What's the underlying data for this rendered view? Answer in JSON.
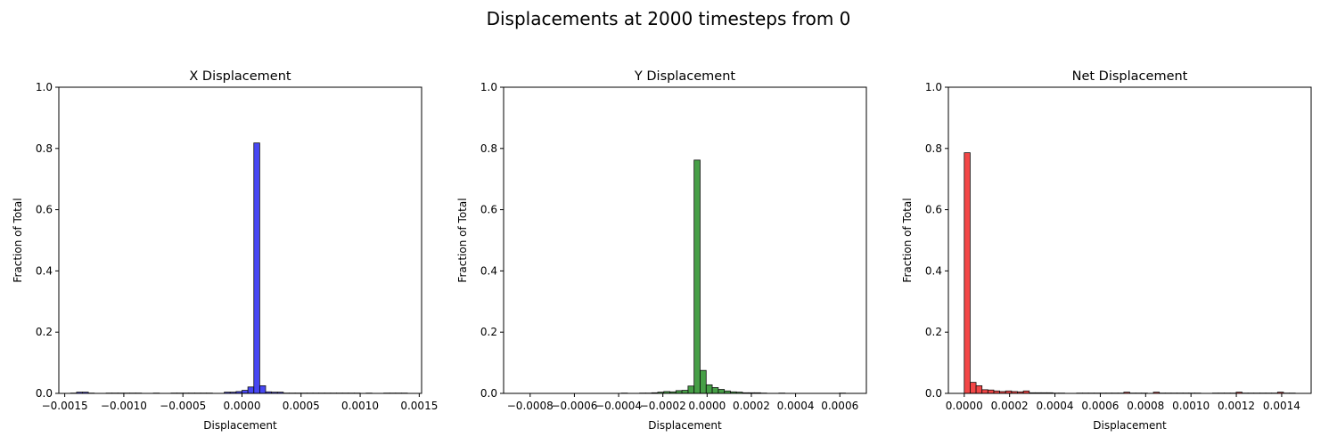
{
  "suptitle": "Displacements at 2000 timesteps from 0",
  "chart_data": [
    {
      "type": "bar",
      "title": "X Displacement",
      "xlabel": "Displacement",
      "ylabel": "Fraction of Total",
      "xlim": [
        -0.00155,
        0.00152
      ],
      "ylim": [
        0,
        1.0
      ],
      "xticks": [
        -0.0015,
        -0.001,
        -0.0005,
        0.0,
        0.0005,
        0.001,
        0.0015
      ],
      "xtick_labels": [
        "−0.0015",
        "−0.0010",
        "−0.0005",
        "0.0000",
        "0.0005",
        "0.0010",
        "0.0015"
      ],
      "yticks": [
        0.0,
        0.2,
        0.4,
        0.6,
        0.8,
        1.0
      ],
      "ytick_labels": [
        "0.0",
        "0.2",
        "0.4",
        "0.6",
        "0.8",
        "1.0"
      ],
      "bin_edges_range": [
        -0.00145,
        0.0014
      ],
      "bin_count": 57,
      "values": [
        0.001,
        0.004,
        0.004,
        0.001,
        0.0,
        0.0,
        0.001,
        0.001,
        0.001,
        0.001,
        0.001,
        0.001,
        0.0,
        0.0,
        0.001,
        0.0,
        0.0,
        0.001,
        0.001,
        0.001,
        0.001,
        0.001,
        0.001,
        0.001,
        0.0,
        0.0,
        0.004,
        0.004,
        0.006,
        0.01,
        0.021,
        0.818,
        0.025,
        0.005,
        0.004,
        0.004,
        0.001,
        0.001,
        0.001,
        0.001,
        0.001,
        0.001,
        0.001,
        0.001,
        0.001,
        0.001,
        0.001,
        0.001,
        0.001,
        0.0,
        0.001,
        0.0,
        0.0,
        0.001,
        0.001,
        0.001,
        0.001
      ],
      "color": "#0000ee",
      "edge_color": "#111111",
      "grid": false
    },
    {
      "type": "bar",
      "title": "Y Displacement",
      "xlabel": "Displacement",
      "ylabel": "Fraction of Total",
      "xlim": [
        -0.00092,
        0.00072
      ],
      "ylim": [
        0,
        1.0
      ],
      "xticks": [
        -0.0008,
        -0.0006,
        -0.0004,
        -0.0002,
        0.0,
        0.0002,
        0.0004,
        0.0006
      ],
      "xtick_labels": [
        "−0.0008",
        "−0.0006",
        "−0.0004",
        "−0.0002",
        "0.0000",
        "0.0002",
        "0.0004",
        "0.0006"
      ],
      "yticks": [
        0.0,
        0.2,
        0.4,
        0.6,
        0.8,
        1.0
      ],
      "ytick_labels": [
        "0.0",
        "0.2",
        "0.4",
        "0.6",
        "0.8",
        "1.0"
      ],
      "bin_edges_range": [
        -0.00088,
        0.00068
      ],
      "bin_count": 57,
      "values": [
        0.0,
        0.0,
        0.0,
        0.0,
        0.0,
        0.0,
        0.0,
        0.0,
        0.0,
        0.0,
        0.0,
        0.0,
        0.0,
        0.0,
        0.0,
        0.0,
        0.0,
        0.0,
        0.001,
        0.0,
        0.0,
        0.001,
        0.001,
        0.002,
        0.004,
        0.006,
        0.005,
        0.009,
        0.01,
        0.024,
        0.762,
        0.075,
        0.028,
        0.019,
        0.013,
        0.008,
        0.005,
        0.004,
        0.002,
        0.002,
        0.002,
        0.001,
        0.0,
        0.0,
        0.001,
        0.0,
        0.0,
        0.0,
        0.0,
        0.0,
        0.0,
        0.0,
        0.0,
        0.0,
        0.001,
        0.0,
        0.0
      ],
      "color": "#007a00",
      "edge_color": "#111111",
      "grid": false
    },
    {
      "type": "bar",
      "title": "Net Displacement",
      "xlabel": "Displacement",
      "ylabel": "Fraction of Total",
      "xlim": [
        -7e-05,
        0.00153
      ],
      "ylim": [
        0,
        1.0
      ],
      "xticks": [
        0.0,
        0.0002,
        0.0004,
        0.0006,
        0.0008,
        0.001,
        0.0012,
        0.0014
      ],
      "xtick_labels": [
        "0.0000",
        "0.0002",
        "0.0004",
        "0.0006",
        "0.0008",
        "0.0010",
        "0.0012",
        "0.0014"
      ],
      "yticks": [
        0.0,
        0.2,
        0.4,
        0.6,
        0.8,
        1.0
      ],
      "ytick_labels": [
        "0.0",
        "0.2",
        "0.4",
        "0.6",
        "0.8",
        "1.0"
      ],
      "bin_edges_range": [
        0.0,
        0.00146
      ],
      "bin_count": 56,
      "values": [
        0.786,
        0.036,
        0.025,
        0.012,
        0.011,
        0.008,
        0.006,
        0.008,
        0.006,
        0.005,
        0.008,
        0.002,
        0.002,
        0.002,
        0.002,
        0.001,
        0.001,
        0.0,
        0.0,
        0.001,
        0.001,
        0.001,
        0.001,
        0.001,
        0.001,
        0.001,
        0.001,
        0.004,
        0.001,
        0.001,
        0.001,
        0.0,
        0.004,
        0.001,
        0.001,
        0.001,
        0.001,
        0.001,
        0.001,
        0.001,
        0.0,
        0.0,
        0.001,
        0.001,
        0.001,
        0.001,
        0.004,
        0.001,
        0.001,
        0.001,
        0.001,
        0.001,
        0.001,
        0.004,
        0.001,
        0.001
      ],
      "color": "#ee0000",
      "edge_color": "#111111",
      "grid": false
    }
  ]
}
